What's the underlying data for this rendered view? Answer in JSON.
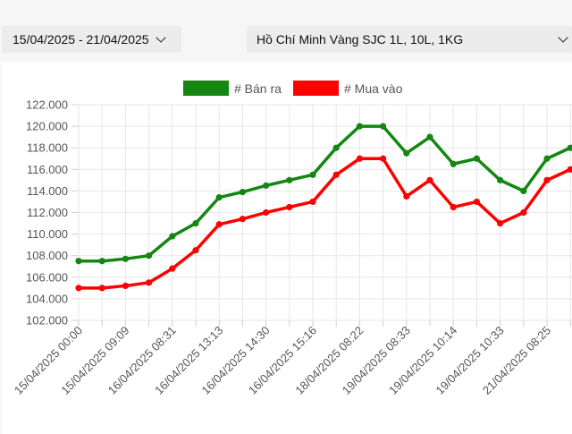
{
  "filters": {
    "date_range": "15/04/2025 - 21/04/2025",
    "product": "Hồ Chí Minh Vàng SJC 1L, 10L, 1KG"
  },
  "icons": {
    "date_dropdown": "chevron-down-icon",
    "product_dropdown": "chevron-down-icon"
  },
  "chart_data": {
    "type": "line",
    "title": "",
    "xlabel": "",
    "ylabel": "",
    "ylim": [
      102,
      122
    ],
    "yticks": [
      "102.000",
      "104.000",
      "106.000",
      "108.000",
      "110.000",
      "112.000",
      "114.000",
      "116.000",
      "118.000",
      "120.000",
      "122.000"
    ],
    "legend_position": "top",
    "grid": true,
    "x_tick_labels": [
      "15/04/2025 00:00",
      "15/04/2025 09:09",
      "16/04/2025 08:31",
      "16/04/2025 13:13",
      "16/04/2025 14:30",
      "16/04/2025 15:16",
      "18/04/2025 08:22",
      "19/04/2025 08:33",
      "19/04/2025 10:14",
      "19/04/2025 10:33",
      "21/04/2025 08:25"
    ],
    "series": [
      {
        "name": "# Bán ra",
        "color": "#138712",
        "values": [
          107.5,
          107.5,
          107.7,
          108.0,
          109.8,
          111.0,
          113.4,
          113.9,
          114.5,
          115.0,
          115.5,
          118.0,
          120.0,
          120.0,
          117.5,
          119.0,
          116.5,
          117.0,
          115.0,
          114.0,
          117.0,
          118.0
        ]
      },
      {
        "name": "# Mua vào",
        "color": "#ff0000",
        "values": [
          105.0,
          105.0,
          105.2,
          105.5,
          106.8,
          108.5,
          110.9,
          111.4,
          112.0,
          112.5,
          113.0,
          115.5,
          117.0,
          117.0,
          113.5,
          115.0,
          112.5,
          113.0,
          111.0,
          112.0,
          115.0,
          116.0
        ]
      }
    ]
  }
}
